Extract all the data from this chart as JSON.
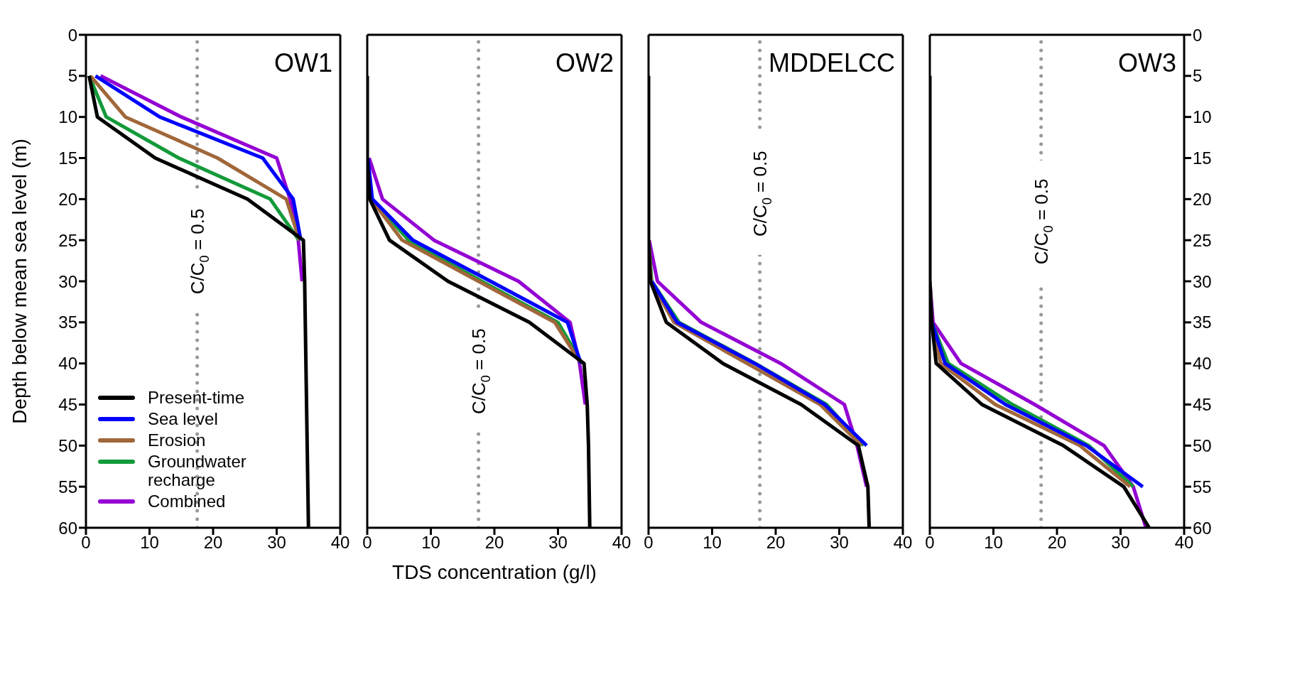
{
  "chart_data": [
    {
      "type": "line",
      "title": "OW1",
      "ylabel": "Depth below mean sea level (m)",
      "xlim": [
        0,
        40
      ],
      "xticks": [
        0,
        10,
        20,
        30,
        40
      ],
      "ylim": [
        60,
        0
      ],
      "yticks": [
        0,
        5,
        10,
        15,
        20,
        25,
        30,
        35,
        40,
        45,
        50,
        55,
        60
      ],
      "legend": "bottom left",
      "line_style": "solid",
      "marker": "none",
      "ref_lines": [
        {
          "axis": "x",
          "value": 17.5,
          "color": "#999999",
          "line_style": "dotted"
        }
      ],
      "annotations": [
        "C/C$_{0}$ = 0.5"
      ],
      "series": [
        {
          "name": "Present-time",
          "color": "#000000",
          "x": [
            0.5,
            1.8,
            10.9,
            25.4,
            34.2,
            34.4,
            34.5,
            34.6,
            34.7,
            34.8,
            34.9,
            35
          ],
          "values": [
            5,
            10,
            15,
            20,
            25,
            30,
            35,
            40,
            45,
            50,
            55,
            60
          ]
        },
        {
          "name": "Sea level",
          "color": "#0000ff",
          "x": [
            1.5,
            11.6,
            27.8,
            32.6,
            33.8
          ],
          "values": [
            5,
            10,
            15,
            20,
            25
          ]
        },
        {
          "name": "Erosion",
          "color": "#a0673a",
          "x": [
            0.7,
            6.2,
            20.7,
            31.5,
            33.6
          ],
          "values": [
            5,
            10,
            15,
            20,
            25
          ]
        },
        {
          "name": "Groundwater recharge",
          "color": "#139a3a",
          "x": [
            0.5,
            3.2,
            14.6,
            29,
            33.5
          ],
          "values": [
            5,
            10,
            15,
            20,
            25
          ]
        },
        {
          "name": "Combined",
          "color": "#9400d3",
          "x": [
            2.3,
            15,
            30,
            32.1,
            33.4,
            34
          ],
          "values": [
            5,
            10,
            15,
            20,
            25,
            30
          ]
        }
      ]
    },
    {
      "type": "line",
      "title": "OW2",
      "xlabel": "TDS concentration (g/l)",
      "xlim": [
        0,
        40
      ],
      "xticks": [
        0,
        10,
        20,
        30,
        40
      ],
      "ylim": [
        60,
        0
      ],
      "yticks": [
        0,
        5,
        10,
        15,
        20,
        25,
        30,
        35,
        40,
        45,
        50,
        55,
        60
      ],
      "tick_labels": "x",
      "line_style": "solid",
      "marker": "none",
      "ref_lines": [
        {
          "axis": "x",
          "value": 17.5,
          "color": "#999999",
          "line_style": "dotted"
        }
      ],
      "annotations": [
        "C/C$_{0}$ = 0.5"
      ],
      "series": [
        {
          "color": "#000000",
          "x": [
            0,
            0,
            0,
            0.4,
            3.5,
            12.7,
            25.5,
            34.1,
            34.6,
            34.8,
            34.9,
            35
          ],
          "values": [
            5,
            10,
            15,
            20,
            25,
            30,
            35,
            40,
            45,
            50,
            55,
            60
          ]
        },
        {
          "color": "#0000ff",
          "x": [
            0.1,
            0.8,
            7.2,
            19.4,
            31.5,
            33.6
          ],
          "values": [
            15,
            20,
            25,
            30,
            35,
            40
          ]
        },
        {
          "color": "#a0673a",
          "x": [
            0.1,
            0.6,
            5.5,
            17.5,
            29.5,
            33.6
          ],
          "values": [
            15,
            20,
            25,
            30,
            35,
            40
          ]
        },
        {
          "color": "#139a3a",
          "x": [
            0.1,
            0.7,
            6.5,
            18,
            30,
            33.8
          ],
          "values": [
            15,
            20,
            25,
            30,
            35,
            40
          ]
        },
        {
          "color": "#9400d3",
          "x": [
            0.3,
            2.4,
            10.5,
            23.8,
            31.9,
            33.4,
            34.3
          ],
          "values": [
            15,
            20,
            25,
            30,
            35,
            40,
            45
          ]
        }
      ]
    },
    {
      "type": "line",
      "title": "MDDELCC",
      "xlim": [
        0,
        40
      ],
      "xticks": [
        0,
        10,
        20,
        30,
        40
      ],
      "ylim": [
        60,
        0
      ],
      "yticks": [
        0,
        5,
        10,
        15,
        20,
        25,
        30,
        35,
        40,
        45,
        50,
        55,
        60
      ],
      "tick_labels": "x",
      "line_style": "solid",
      "marker": "none",
      "ref_lines": [
        {
          "axis": "x",
          "value": 17.5,
          "color": "#999999",
          "line_style": "dotted"
        }
      ],
      "annotations": [
        "C/C$_{0}$ = 0.5"
      ],
      "series": [
        {
          "color": "#000000",
          "x": [
            0,
            0,
            0,
            0,
            0,
            0.3,
            2.8,
            11.7,
            24,
            33,
            34.5,
            34.7
          ],
          "values": [
            5,
            10,
            15,
            20,
            25,
            30,
            35,
            40,
            45,
            50,
            55,
            60
          ]
        },
        {
          "color": "#0000ff",
          "x": [
            0.5,
            4.5,
            16.7,
            27.7,
            34.3
          ],
          "values": [
            30,
            35,
            40,
            45,
            50
          ]
        },
        {
          "color": "#a0673a",
          "x": [
            0,
            0.4,
            4,
            15.5,
            27,
            33.5
          ],
          "values": [
            25,
            30,
            35,
            40,
            45,
            50
          ]
        },
        {
          "color": "#139a3a",
          "x": [
            0,
            0.5,
            4.8,
            16.8,
            28,
            33.8
          ],
          "values": [
            25,
            30,
            35,
            40,
            45,
            50
          ]
        },
        {
          "color": "#9400d3",
          "x": [
            0.1,
            1.4,
            8.3,
            20.8,
            30.8,
            32.8,
            34.3
          ],
          "values": [
            25,
            30,
            35,
            40,
            45,
            50,
            55
          ]
        }
      ]
    },
    {
      "type": "line",
      "title": "OW3",
      "xlim": [
        0,
        40
      ],
      "xticks": [
        0,
        10,
        20,
        30,
        40
      ],
      "ylim": [
        60,
        0
      ],
      "yticks": [
        0,
        5,
        10,
        15,
        20,
        25,
        30,
        35,
        40,
        45,
        50,
        55,
        60
      ],
      "line_style": "solid",
      "marker": "none",
      "ref_lines": [
        {
          "axis": "x",
          "value": 17.5,
          "color": "#999999",
          "line_style": "dotted"
        }
      ],
      "annotations": [
        "C/C$_{0}$ = 0.5"
      ],
      "series": [
        {
          "color": "#000000",
          "x": [
            0,
            0,
            0,
            0,
            0,
            0,
            0.3,
            1,
            8.2,
            21,
            30.5,
            34.5
          ],
          "values": [
            5,
            10,
            15,
            20,
            25,
            30,
            35,
            40,
            45,
            50,
            55,
            60
          ]
        },
        {
          "color": "#0000ff",
          "x": [
            0.3,
            2.4,
            11.9,
            24.6,
            33.5
          ],
          "values": [
            35,
            40,
            45,
            50,
            55
          ]
        },
        {
          "color": "#a0673a",
          "x": [
            0,
            0.3,
            1.7,
            10.3,
            23.6,
            31.5
          ],
          "values": [
            30,
            35,
            40,
            45,
            50,
            55
          ]
        },
        {
          "color": "#139a3a",
          "x": [
            0,
            0.3,
            2.9,
            13,
            25,
            32
          ],
          "values": [
            30,
            35,
            40,
            45,
            50,
            55
          ]
        },
        {
          "color": "#9400d3",
          "x": [
            0,
            0.5,
            4.9,
            16.5,
            27.4,
            32,
            34
          ],
          "values": [
            30,
            35,
            40,
            45,
            50,
            55,
            60
          ]
        }
      ]
    }
  ]
}
